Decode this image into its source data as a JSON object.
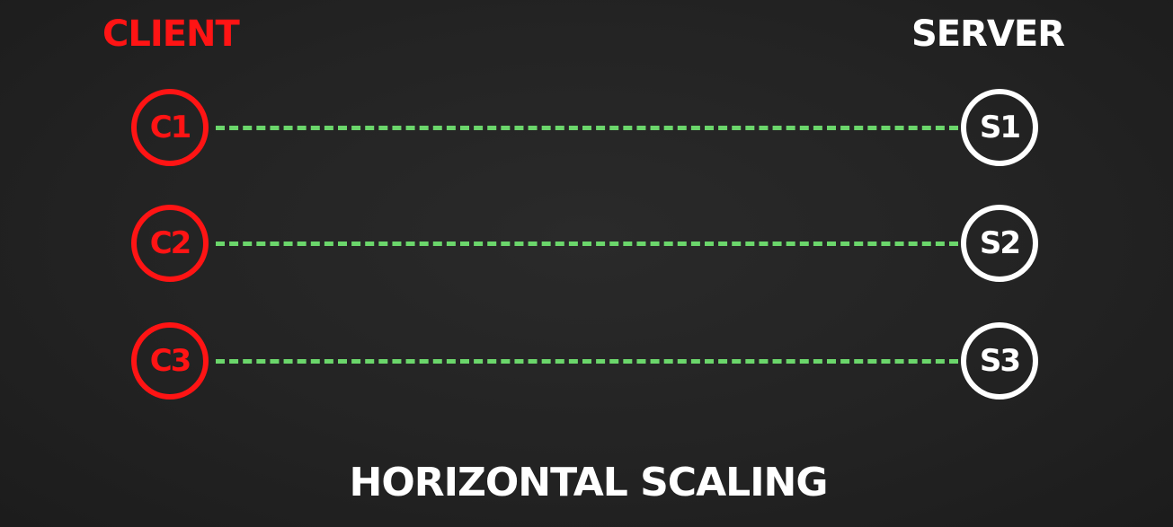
{
  "headings": {
    "client": "CLIENT",
    "server": "SERVER"
  },
  "rows": [
    {
      "client": "C1",
      "server": "S1"
    },
    {
      "client": "C2",
      "server": "S2"
    },
    {
      "client": "C3",
      "server": "S3"
    }
  ],
  "footer": {
    "title": "HORIZONTAL SCALING"
  },
  "colors": {
    "background": "#232323",
    "client": "#ff1414",
    "server": "#ffffff",
    "connection": "#6bd66b"
  }
}
